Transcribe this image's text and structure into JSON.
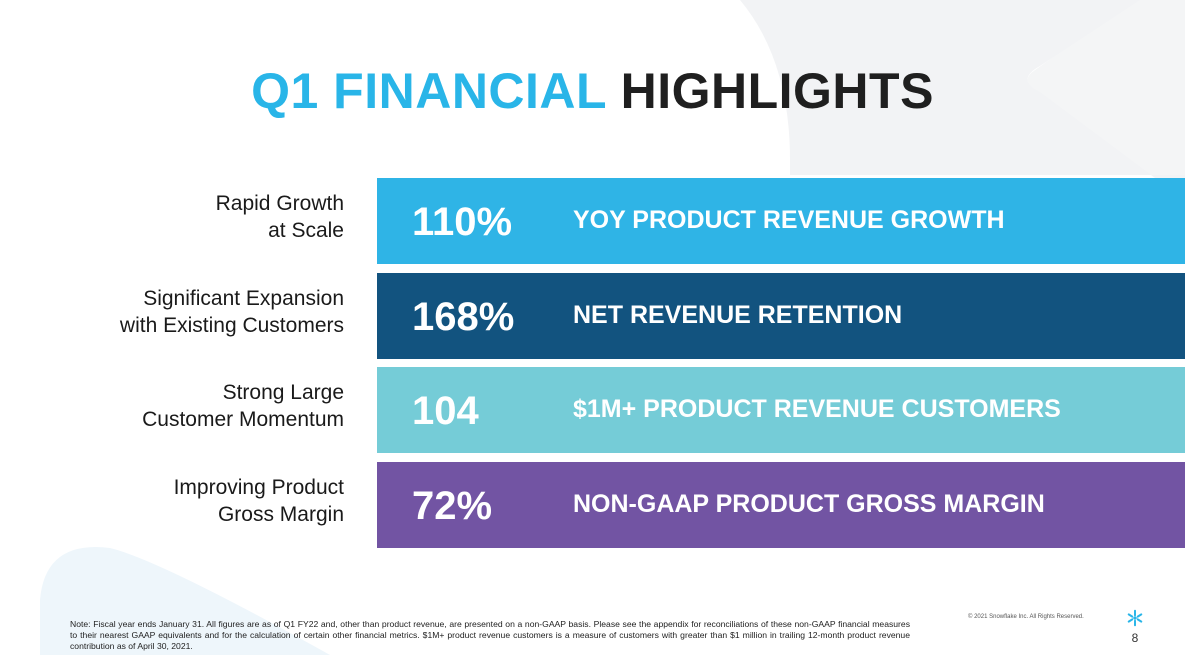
{
  "title": {
    "accent": "Q1 FINANCIAL",
    "rest": "HIGHLIGHTS"
  },
  "colors": {
    "accent": "#29b5e8",
    "bar1": "#2fb4e6",
    "bar2": "#12537f",
    "bar3": "#75ccd7",
    "bar4": "#7254a3"
  },
  "rows": [
    {
      "label1": "Rapid Growth",
      "label2": "at Scale",
      "metric": "110%",
      "desc": "YOY PRODUCT REVENUE GROWTH"
    },
    {
      "label1": "Significant Expansion",
      "label2": "with Existing Customers",
      "metric": "168%",
      "desc": "NET REVENUE RETENTION"
    },
    {
      "label1": "Strong Large",
      "label2": "Customer Momentum",
      "metric": "104",
      "desc": "$1M+ PRODUCT REVENUE CUSTOMERS"
    },
    {
      "label1": "Improving Product",
      "label2": "Gross Margin",
      "metric": "72%",
      "desc": "NON-GAAP PRODUCT GROSS MARGIN"
    }
  ],
  "footer": {
    "note": "Note:  Fiscal year ends January 31. All figures are as of Q1 FY22 and, other than product revenue, are presented on a non-GAAP basis. Please see the appendix for reconciliations of these non-GAAP financial measures to their nearest GAAP equivalents and for the calculation of certain other financial metrics.  $1M+ product revenue customers is a measure of customers with greater than $1 million in trailing 12-month product revenue contribution as of April 30, 2021.",
    "copyright": "© 2021 Snowflake Inc. All Rights Reserved.",
    "page": "8",
    "logo_icon": "snowflake-logo-icon"
  }
}
